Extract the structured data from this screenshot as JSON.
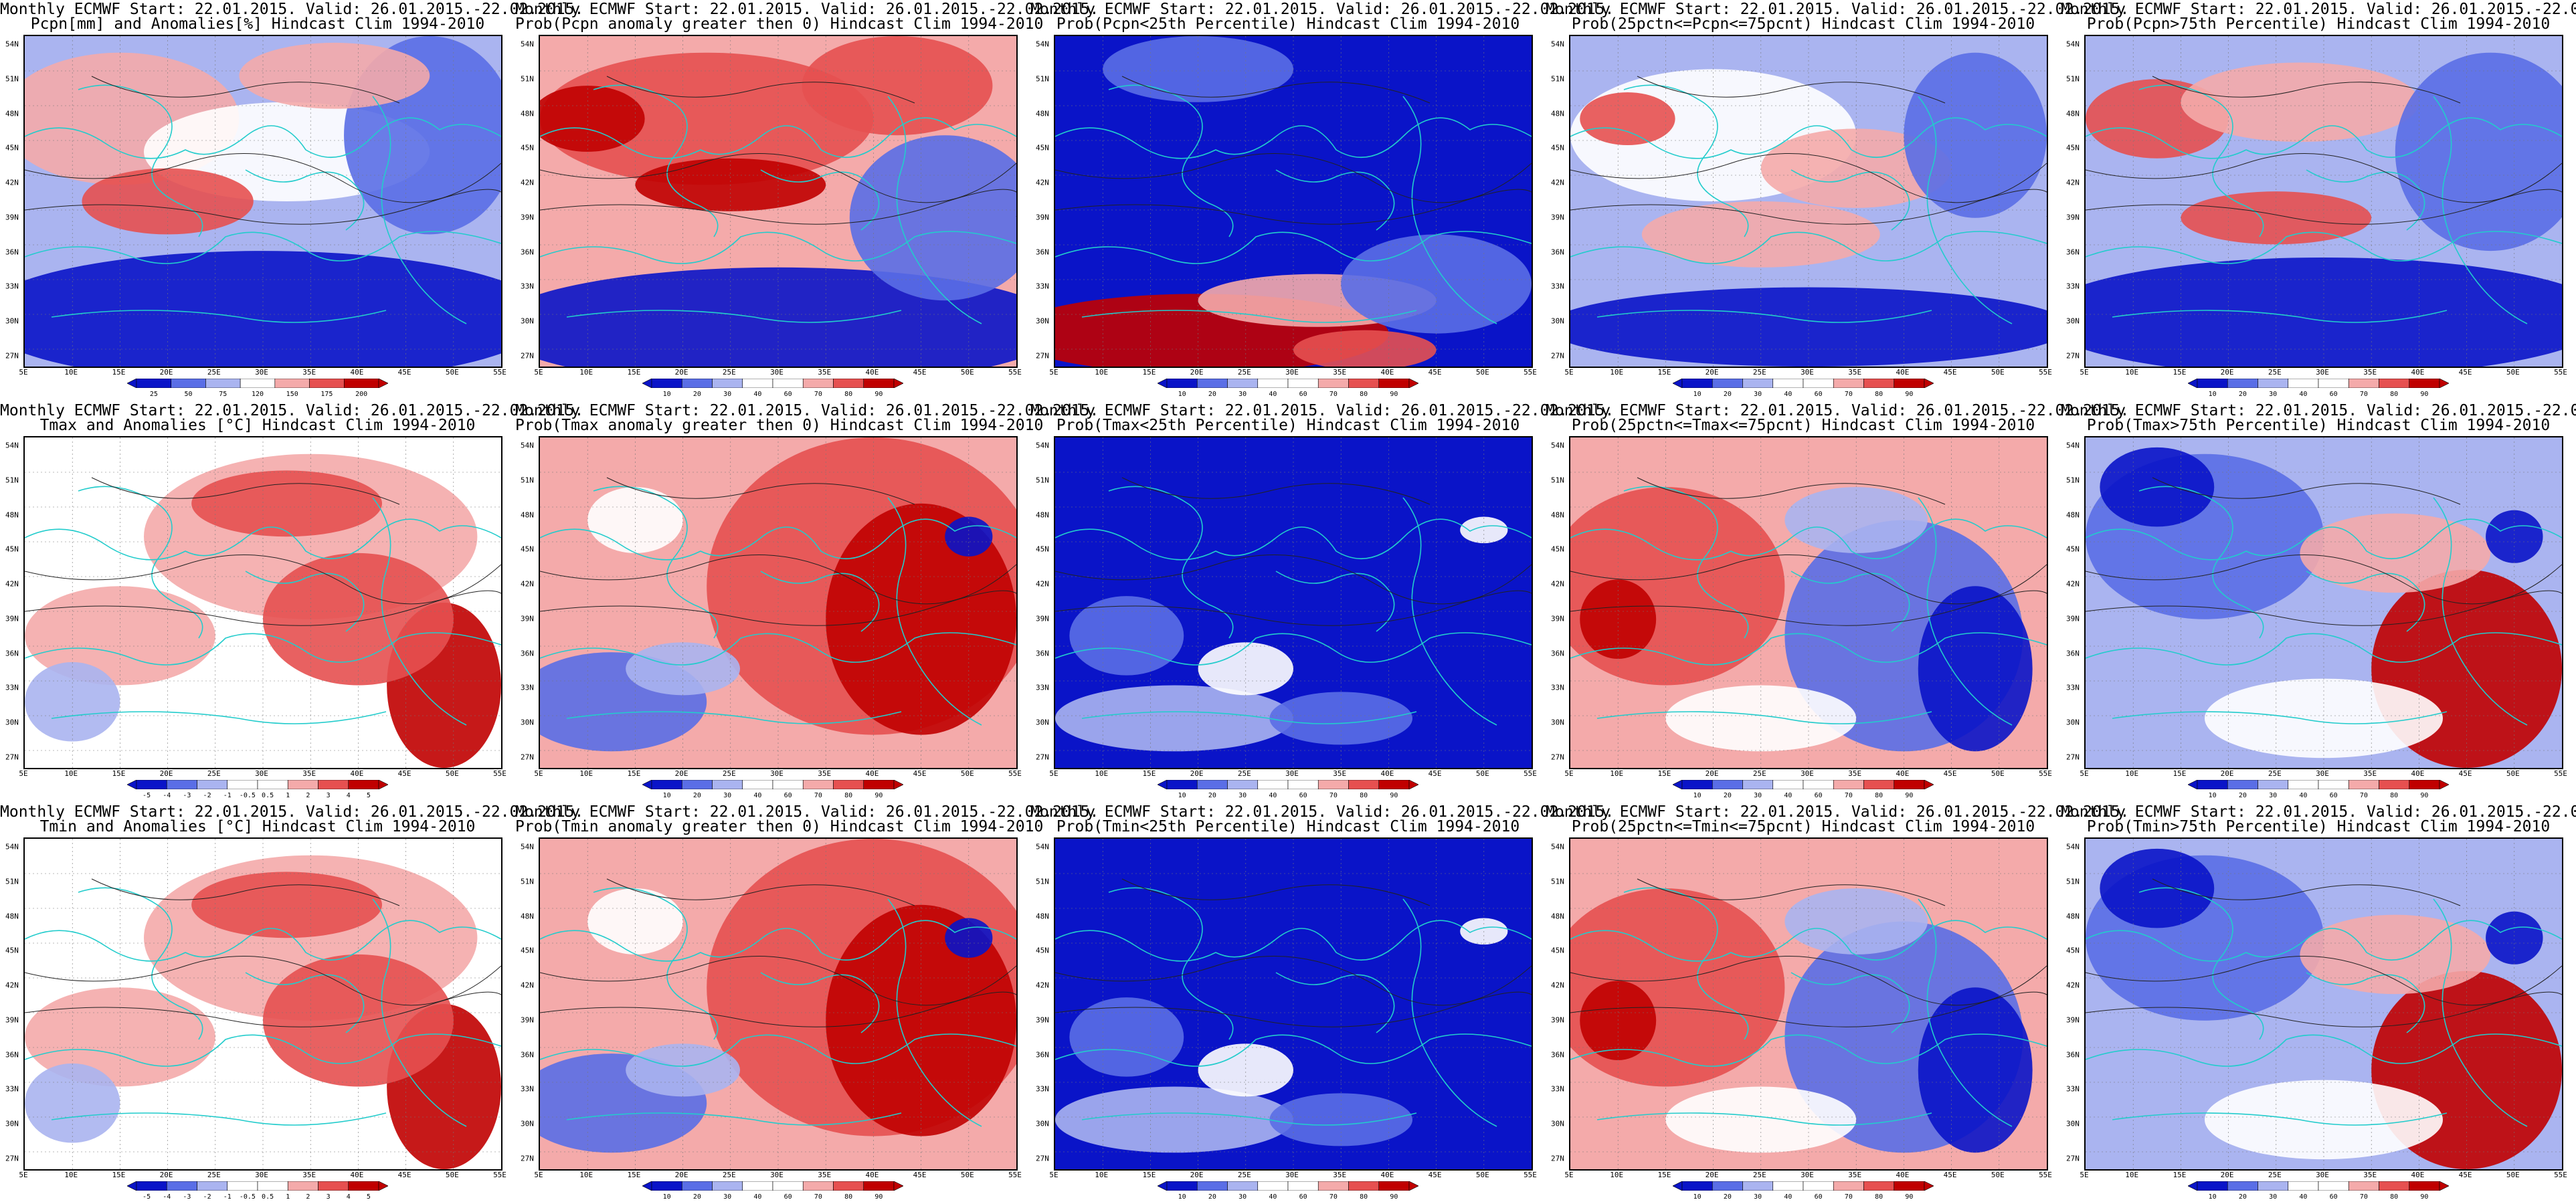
{
  "header_line": "Monthly ECMWF Start: 22.01.2015. Valid: 26.01.2015.-22.02.2015.",
  "lat_labels": [
    "54N",
    "51N",
    "48N",
    "45N",
    "42N",
    "39N",
    "36N",
    "33N",
    "30N",
    "27N"
  ],
  "lon_labels": [
    "5E",
    "10E",
    "15E",
    "20E",
    "25E",
    "30E",
    "35E",
    "40E",
    "45E",
    "50E",
    "55E"
  ],
  "colorbars": {
    "precip": [
      "25",
      "50",
      "75",
      "120",
      "150",
      "175",
      "200"
    ],
    "prob": [
      "10",
      "20",
      "30",
      "40",
      "60",
      "70",
      "80",
      "90"
    ],
    "temp": [
      "-5",
      "-4",
      "-3",
      "-2",
      "-1",
      "-0.5",
      "0.5",
      "1",
      "2",
      "3",
      "4",
      "5"
    ]
  },
  "colors": {
    "deep_blue": "#0a14c8",
    "mid_blue": "#5a6ee6",
    "light_blue": "#aab4f0",
    "white": "#ffffff",
    "light_red": "#f4aaaa",
    "mid_red": "#e65050",
    "deep_red": "#c00000",
    "coast": "#22cccc"
  },
  "panels": [
    {
      "subtitle": "Pcpn[mm] and Anomalies[%] Hindcast Clim 1994-2010",
      "colorbar": "precip",
      "pattern": "mixed_warm"
    },
    {
      "subtitle": "Prob(Pcpn anomaly greater then 0) Hindcast Clim 1994-2010",
      "colorbar": "prob",
      "pattern": "red_north"
    },
    {
      "subtitle": "Prob(Pcpn<25th Percentile) Hindcast Clim 1994-2010",
      "colorbar": "prob",
      "pattern": "blue_red_south"
    },
    {
      "subtitle": "Prob(25pctn<=Pcpn<=75pcnt) Hindcast Clim 1994-2010",
      "colorbar": "prob",
      "pattern": "pale_mixed"
    },
    {
      "subtitle": "Prob(Pcpn>75th Percentile) Hindcast Clim 1994-2010",
      "colorbar": "prob",
      "pattern": "mixed_cool"
    },
    {
      "subtitle": "Tmax and Anomalies [°C] Hindcast Clim 1994-2010",
      "colorbar": "temp",
      "pattern": "warm_east"
    },
    {
      "subtitle": "Prob(Tmax anomaly greater then 0) Hindcast Clim 1994-2010",
      "colorbar": "prob",
      "pattern": "hot_east"
    },
    {
      "subtitle": "Prob(Tmax<25th Percentile) Hindcast Clim 1994-2010",
      "colorbar": "prob",
      "pattern": "all_blue"
    },
    {
      "subtitle": "Prob(25pctn<=Tmax<=75pcnt) Hindcast Clim 1994-2010",
      "colorbar": "prob",
      "pattern": "red_west_blue_east"
    },
    {
      "subtitle": "Prob(Tmax>75th Percentile) Hindcast Clim 1994-2010",
      "colorbar": "prob",
      "pattern": "blue_west_red_se"
    },
    {
      "subtitle": "Tmin and Anomalies [°C] Hindcast Clim 1994-2010",
      "colorbar": "temp",
      "pattern": "warm_east"
    },
    {
      "subtitle": "Prob(Tmin anomaly greater then 0) Hindcast Clim 1994-2010",
      "colorbar": "prob",
      "pattern": "hot_east"
    },
    {
      "subtitle": "Prob(Tmin<25th Percentile) Hindcast Clim 1994-2010",
      "colorbar": "prob",
      "pattern": "all_blue"
    },
    {
      "subtitle": "Prob(25pctn<=Tmin<=75pcnt) Hindcast Clim 1994-2010",
      "colorbar": "prob",
      "pattern": "red_west_blue_east"
    },
    {
      "subtitle": "Prob(Tmin>75th Percentile) Hindcast Clim 1994-2010",
      "colorbar": "prob",
      "pattern": "blue_west_red_se"
    }
  ]
}
